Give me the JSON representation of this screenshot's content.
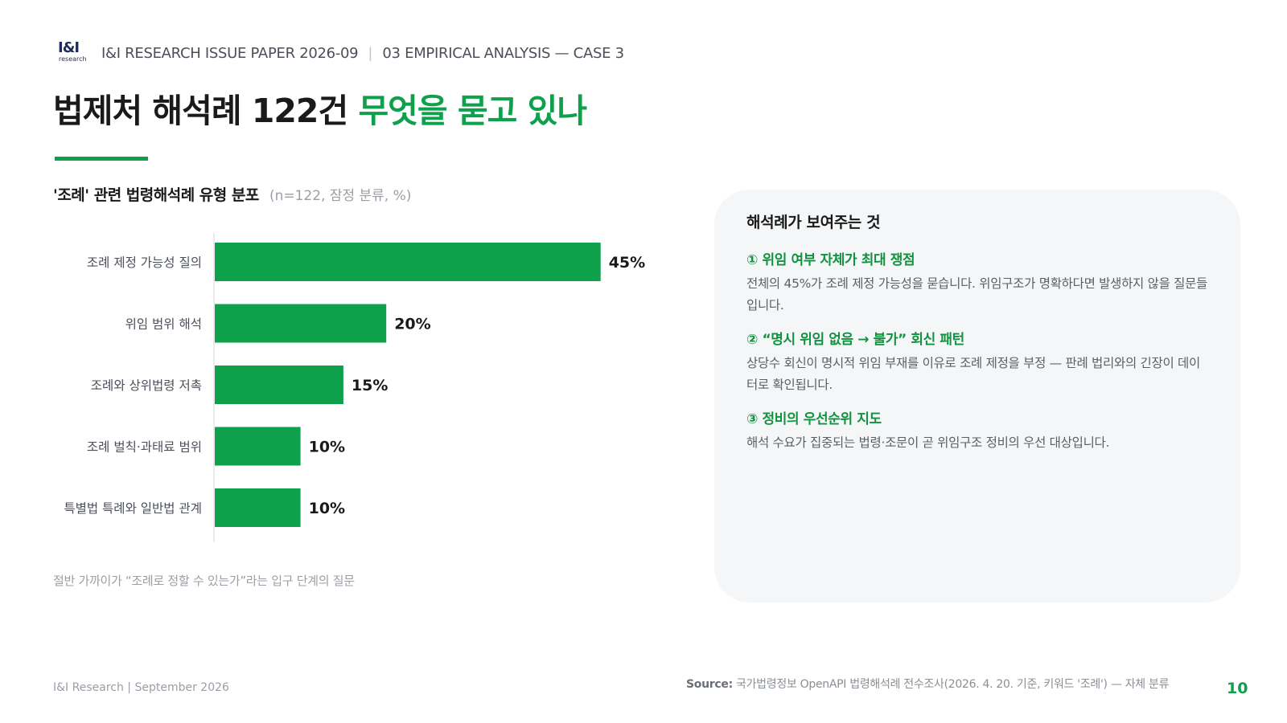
{
  "header": {
    "logo_main": "I&I",
    "logo_sub": "research",
    "paper": "I&I RESEARCH ISSUE PAPER 2026-09",
    "separator": "|",
    "section": "03  EMPIRICAL ANALYSIS — CASE 3"
  },
  "title": {
    "main": "법제처 해석례 122건 ",
    "accent": "무엇을 묻고 있나"
  },
  "chart_header": {
    "title": "'조례' 관련 법령해석례 유형 분포",
    "note": "(n=122, 잠정 분류, %)"
  },
  "chart_data": {
    "type": "bar",
    "orientation": "horizontal",
    "categories": [
      "조례 제정 가능성 질의",
      "위임 범위 해석",
      "조례와 상위법령 저촉",
      "조례 벌칙·과태료 범위",
      "특별법 특례와 일반법 관계"
    ],
    "values": [
      45,
      20,
      15,
      10,
      10
    ],
    "value_labels": [
      "45%",
      "20%",
      "15%",
      "10%",
      "10%"
    ],
    "xlim": [
      0,
      50
    ],
    "bar_color": "#0ea04b",
    "grid": false,
    "legend": "none"
  },
  "chart_footnote": "절반 가까이가 “조례로 정할 수 있는가”라는 입구 단계의 질문",
  "panel": {
    "title": "해석례가 보여주는 것",
    "points": [
      {
        "title": "① 위임 여부 자체가 최대 쟁점",
        "body": "전체의 45%가 조례 제정 가능성을 묻습니다. 위임구조가 명확하다면 발생하지 않을 질문들입니다."
      },
      {
        "title": "② “명시 위임 없음 → 불가” 회신 패턴",
        "body": "상당수 회신이 명시적 위임 부재를 이유로 조례 제정을 부정 — 판례 법리와의 긴장이 데이터로 확인됩니다."
      },
      {
        "title": "③ 정비의 우선순위 지도",
        "body": "해석 수요가 집중되는 법령·조문이 곧 위임구조 정비의 우선 대상입니다."
      }
    ]
  },
  "footer": {
    "left": "I&I Research  |  September 2026",
    "source_label": "Source:",
    "source_text": " 국가법령정보 OpenAPI 법령해석례 전수조사(2026. 4. 20. 기준, 키워드 '조례') — 자체 분류",
    "page": "10"
  },
  "colors": {
    "accent": "#0ea04b",
    "panel_bg": "#f4f6f8",
    "text_dark": "#1a1a1a",
    "text_muted": "#9a9fa6"
  }
}
